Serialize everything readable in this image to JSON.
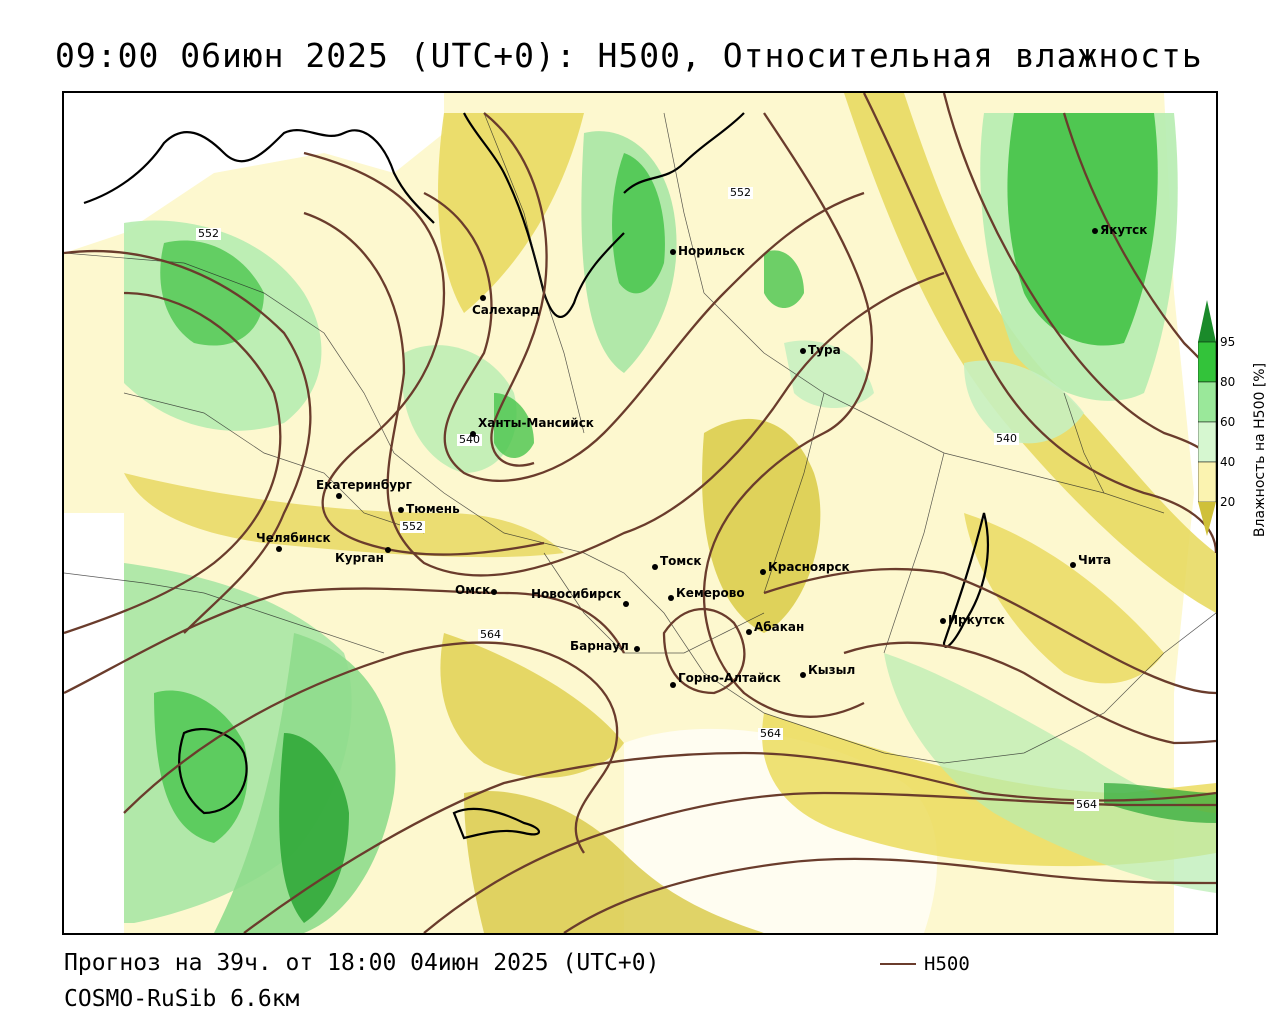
{
  "title": "09:00 06июн 2025 (UTC+0): H500, Относительная влажность",
  "footer": {
    "forecast": "Прогноз на 39ч. от 18:00 04июн 2025 (UTC+0)",
    "model": "COSMO-RuSib 6.6км"
  },
  "legend": {
    "h500_label": "H500",
    "h500_color": "#6a3c2c"
  },
  "colorbar": {
    "title": "Влажность на H500 [%]",
    "ticks": [
      "95",
      "80",
      "60",
      "40",
      "20"
    ],
    "colors": {
      "c95": "#1a8a2a",
      "c80": "#33c33a",
      "c60": "#9ae89a",
      "c40": "#d6f7d0",
      "mid": "#ffffff",
      "c20": "#fbf3b0",
      "c10": "#e8dc6a",
      "c0": "#cfc03a"
    }
  },
  "cities": [
    {
      "name": "Салехард"
    },
    {
      "name": "Норильск"
    },
    {
      "name": "Якутск"
    },
    {
      "name": "Тура"
    },
    {
      "name": "Ханты-Мансийск"
    },
    {
      "name": "Екатеринбург"
    },
    {
      "name": "Тюмень"
    },
    {
      "name": "Челябинск"
    },
    {
      "name": "Курган"
    },
    {
      "name": "Омск"
    },
    {
      "name": "Новосибирск"
    },
    {
      "name": "Томск"
    },
    {
      "name": "Кемерово"
    },
    {
      "name": "Красноярск"
    },
    {
      "name": "Абакан"
    },
    {
      "name": "Барнаул"
    },
    {
      "name": "Горно-Алтайск"
    },
    {
      "name": "Кызыл"
    },
    {
      "name": "Иркутск"
    },
    {
      "name": "Чита"
    }
  ],
  "contour_labels": [
    "552",
    "552",
    "540",
    "552",
    "564",
    "540",
    "564",
    "564"
  ]
}
